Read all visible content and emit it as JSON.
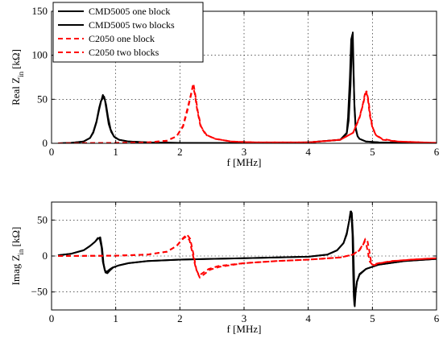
{
  "chart_data": [
    {
      "type": "line",
      "xlabel": "f [MHz]",
      "ylabel_main": "Real Z",
      "ylabel_sub": "in",
      "ylabel_unit": "[kΩ]",
      "xlim": [
        0,
        6
      ],
      "ylim": [
        0,
        150
      ],
      "xticks": [
        "0",
        "1",
        "2",
        "3",
        "4",
        "5",
        "6"
      ],
      "yticks": [
        "0",
        "50",
        "100",
        "150"
      ],
      "grid": true,
      "legend": {
        "placement": "top-left",
        "entries": [
          {
            "label": "CMD5005 one block",
            "color": "#000000",
            "dash": "solid"
          },
          {
            "label": "CMD5005 two blocks",
            "color": "#000000",
            "dash": "solid"
          },
          {
            "label": "C2050 one block",
            "color": "#ff0000",
            "dash": "dashed"
          },
          {
            "label": "C2050 two blocks",
            "color": "#ff0000",
            "dash": "dashed"
          }
        ]
      },
      "series": [
        {
          "name": "CMD5005 one block",
          "color": "#000000",
          "dash": "solid",
          "x": [
            0.1,
            0.3,
            0.5,
            0.6,
            0.65,
            0.7,
            0.74,
            0.77,
            0.8,
            0.82,
            0.85,
            0.88,
            0.92,
            0.97,
            1.05,
            1.2,
            1.5,
            2.0,
            3.0,
            4.0,
            4.5,
            4.6,
            4.62,
            4.65,
            4.67,
            4.69,
            4.7,
            4.72,
            4.74,
            4.77,
            4.8,
            4.9,
            5.1,
            5.5,
            6.0
          ],
          "y": [
            0,
            0.5,
            2,
            6,
            13,
            25,
            40,
            48,
            51,
            53,
            44,
            30,
            16,
            8,
            4,
            2,
            1,
            0.5,
            0.3,
            1,
            4,
            12,
            30,
            75,
            118,
            124,
            96,
            45,
            18,
            8,
            5,
            2,
            1,
            0.5,
            0.3
          ]
        },
        {
          "name": "CMD5005 two blocks",
          "color": "#000000",
          "dash": "solid",
          "x": [
            0.1,
            0.3,
            0.5,
            0.6,
            0.65,
            0.7,
            0.74,
            0.77,
            0.8,
            0.83,
            0.86,
            0.89,
            0.93,
            0.98,
            1.05,
            1.2,
            1.5,
            2.0,
            3.0,
            4.0,
            4.5,
            4.6,
            4.63,
            4.66,
            4.68,
            4.695,
            4.705,
            4.72,
            4.74,
            4.77,
            4.8,
            4.9,
            5.1,
            5.5,
            6.0
          ],
          "y": [
            0,
            0.5,
            2,
            6,
            12,
            24,
            38,
            47,
            55,
            50,
            36,
            22,
            13,
            7,
            4,
            2,
            1,
            0.5,
            0.3,
            1,
            4,
            11,
            26,
            65,
            110,
            126,
            92,
            42,
            16,
            8,
            5,
            2,
            1,
            0.5,
            0.3
          ]
        },
        {
          "name": "C2050 one block",
          "color": "#ff0000",
          "dash": "dashed",
          "x": [
            0.1,
            1.0,
            1.5,
            1.8,
            1.95,
            2.05,
            2.12,
            2.17,
            2.2,
            2.23,
            2.27,
            2.32,
            2.4,
            2.55,
            2.8,
            3.2,
            4.0,
            4.5,
            4.7,
            4.8,
            4.85,
            4.88,
            4.9,
            4.93,
            4.96,
            5.0,
            5.05,
            5.15,
            5.4,
            6.0
          ],
          "y": [
            0,
            0.5,
            1,
            3,
            8,
            20,
            40,
            55,
            65,
            57,
            38,
            20,
            10,
            5,
            2,
            1,
            1,
            4,
            12,
            30,
            44,
            55,
            60,
            50,
            32,
            18,
            10,
            5,
            2,
            0.5
          ]
        },
        {
          "name": "C2050 two blocks",
          "color": "#ff0000",
          "dash": "dashed",
          "x": [
            0.1,
            1.0,
            1.5,
            1.8,
            1.95,
            2.05,
            2.12,
            2.18,
            2.21,
            2.24,
            2.28,
            2.33,
            2.42,
            2.56,
            2.8,
            3.2,
            4.0,
            4.5,
            4.7,
            4.8,
            4.86,
            4.89,
            4.91,
            4.94,
            4.97,
            5.01,
            5.06,
            5.16,
            5.4,
            6.0
          ],
          "y": [
            0,
            0.5,
            1,
            3,
            8,
            19,
            38,
            57,
            68,
            55,
            36,
            19,
            9,
            5,
            2,
            1,
            1,
            4,
            12,
            29,
            46,
            56,
            59,
            48,
            30,
            17,
            9,
            4,
            2,
            0.5
          ]
        }
      ]
    },
    {
      "type": "line",
      "xlabel": "f [MHz]",
      "ylabel_main": "Imag Z",
      "ylabel_sub": "in",
      "ylabel_unit": "[kΩ]",
      "xlim": [
        0,
        6
      ],
      "ylim": [
        -75,
        75
      ],
      "xticks": [
        "0",
        "1",
        "2",
        "3",
        "4",
        "5",
        "6"
      ],
      "yticks": [
        "−50",
        "0",
        "50"
      ],
      "ytick_values": [
        -50,
        0,
        50
      ],
      "grid": true,
      "series": [
        {
          "name": "CMD5005 one block",
          "color": "#000000",
          "dash": "solid",
          "x": [
            0.1,
            0.3,
            0.5,
            0.6,
            0.68,
            0.72,
            0.75,
            0.78,
            0.8,
            0.83,
            0.86,
            0.9,
            0.95,
            1.05,
            1.2,
            1.5,
            2.0,
            3.0,
            4.0,
            4.3,
            4.45,
            4.55,
            4.6,
            4.63,
            4.65,
            4.67,
            4.69,
            4.7,
            4.71,
            4.72,
            4.74,
            4.76,
            4.8,
            4.9,
            5.1,
            5.5,
            6.0
          ],
          "y": [
            1,
            3,
            8,
            14,
            20,
            25,
            24,
            12,
            -8,
            -20,
            -22,
            -19,
            -16,
            -13,
            -10,
            -7,
            -5,
            -3,
            -1,
            2,
            8,
            18,
            30,
            45,
            55,
            62,
            30,
            -20,
            -55,
            -68,
            -48,
            -35,
            -25,
            -18,
            -12,
            -7,
            -4
          ]
        },
        {
          "name": "CMD5005 two blocks",
          "color": "#000000",
          "dash": "solid",
          "x": [
            0.1,
            0.3,
            0.5,
            0.6,
            0.68,
            0.72,
            0.76,
            0.79,
            0.81,
            0.84,
            0.87,
            0.91,
            0.96,
            1.05,
            1.2,
            1.5,
            2.0,
            3.0,
            4.0,
            4.3,
            4.45,
            4.55,
            4.6,
            4.64,
            4.66,
            4.68,
            4.7,
            4.715,
            4.725,
            4.74,
            4.76,
            4.8,
            4.9,
            5.1,
            5.5,
            6.0
          ],
          "y": [
            1,
            3,
            8,
            14,
            20,
            24,
            26,
            10,
            -10,
            -23,
            -24,
            -20,
            -16,
            -13,
            -10,
            -7,
            -5,
            -3,
            -1,
            2,
            8,
            18,
            32,
            50,
            62,
            60,
            25,
            -30,
            -70,
            -50,
            -36,
            -26,
            -18,
            -12,
            -7,
            -4
          ]
        },
        {
          "name": "C2050 one block",
          "color": "#ff0000",
          "dash": "dashed",
          "x": [
            0.1,
            1.0,
            1.5,
            1.8,
            1.95,
            2.05,
            2.1,
            2.15,
            2.2,
            2.25,
            2.3,
            2.35,
            2.45,
            2.6,
            3.0,
            3.5,
            4.0,
            4.5,
            4.7,
            4.8,
            4.85,
            4.88,
            4.9,
            4.93,
            4.96,
            5.0,
            5.1,
            5.3,
            5.6,
            6.0
          ],
          "y": [
            0,
            0.5,
            2,
            6,
            14,
            24,
            27,
            22,
            2,
            -18,
            -27,
            -24,
            -18,
            -14,
            -10,
            -7,
            -5,
            -2,
            2,
            8,
            15,
            20,
            18,
            5,
            -8,
            -12,
            -10,
            -7,
            -5,
            -3
          ]
        },
        {
          "name": "C2050 two blocks",
          "color": "#ff0000",
          "dash": "dashed",
          "x": [
            0.1,
            1.0,
            1.5,
            1.8,
            1.95,
            2.05,
            2.11,
            2.16,
            2.21,
            2.26,
            2.31,
            2.37,
            2.47,
            2.62,
            3.0,
            3.5,
            4.0,
            4.5,
            4.7,
            4.8,
            4.86,
            4.89,
            4.92,
            4.95,
            4.98,
            5.02,
            5.12,
            5.32,
            5.62,
            6.0
          ],
          "y": [
            0,
            0.5,
            2,
            6,
            14,
            25,
            30,
            24,
            3,
            -20,
            -30,
            -26,
            -19,
            -15,
            -10,
            -7,
            -5,
            -2,
            2,
            9,
            17,
            24,
            22,
            8,
            -8,
            -13,
            -10,
            -7,
            -5,
            -3
          ]
        }
      ]
    }
  ]
}
